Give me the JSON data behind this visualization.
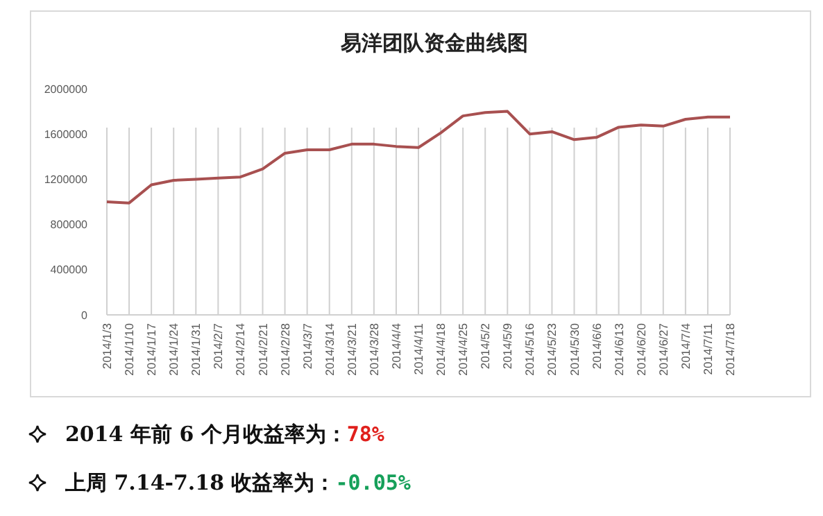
{
  "chart_data": {
    "type": "line",
    "title": "易洋团队资金曲线图",
    "categories": [
      "2014/1/3",
      "2014/1/10",
      "2014/1/17",
      "2014/1/24",
      "2014/1/31",
      "2014/2/7",
      "2014/2/14",
      "2014/2/21",
      "2014/2/28",
      "2014/3/7",
      "2014/3/14",
      "2014/3/21",
      "2014/3/28",
      "2014/4/4",
      "2014/4/11",
      "2014/4/18",
      "2014/4/25",
      "2014/5/2",
      "2014/5/9",
      "2014/5/16",
      "2014/5/23",
      "2014/5/30",
      "2014/6/6",
      "2014/6/13",
      "2014/6/20",
      "2014/6/27",
      "2014/7/4",
      "2014/7/11",
      "2014/7/18"
    ],
    "series": [
      {
        "color": "#a85050",
        "values": [
          1000000,
          990000,
          1150000,
          1190000,
          1200000,
          1210000,
          1220000,
          1290000,
          1430000,
          1460000,
          1460000,
          1510000,
          1510000,
          1490000,
          1480000,
          1610000,
          1760000,
          1790000,
          1800000,
          1600000,
          1620000,
          1550000,
          1570000,
          1660000,
          1680000,
          1670000,
          1730000,
          1750000,
          1750000
        ]
      }
    ],
    "ylim": [
      0,
      2000000
    ],
    "yticks": [
      0,
      400000,
      800000,
      1200000,
      1600000,
      2000000
    ],
    "grid": "x",
    "marker": "none",
    "line_style": "solid",
    "annotations": [
      "2014 年前 6 个月收益率为：78%",
      "上周 7.14-7.18 收益率为：-0.05%"
    ]
  }
}
